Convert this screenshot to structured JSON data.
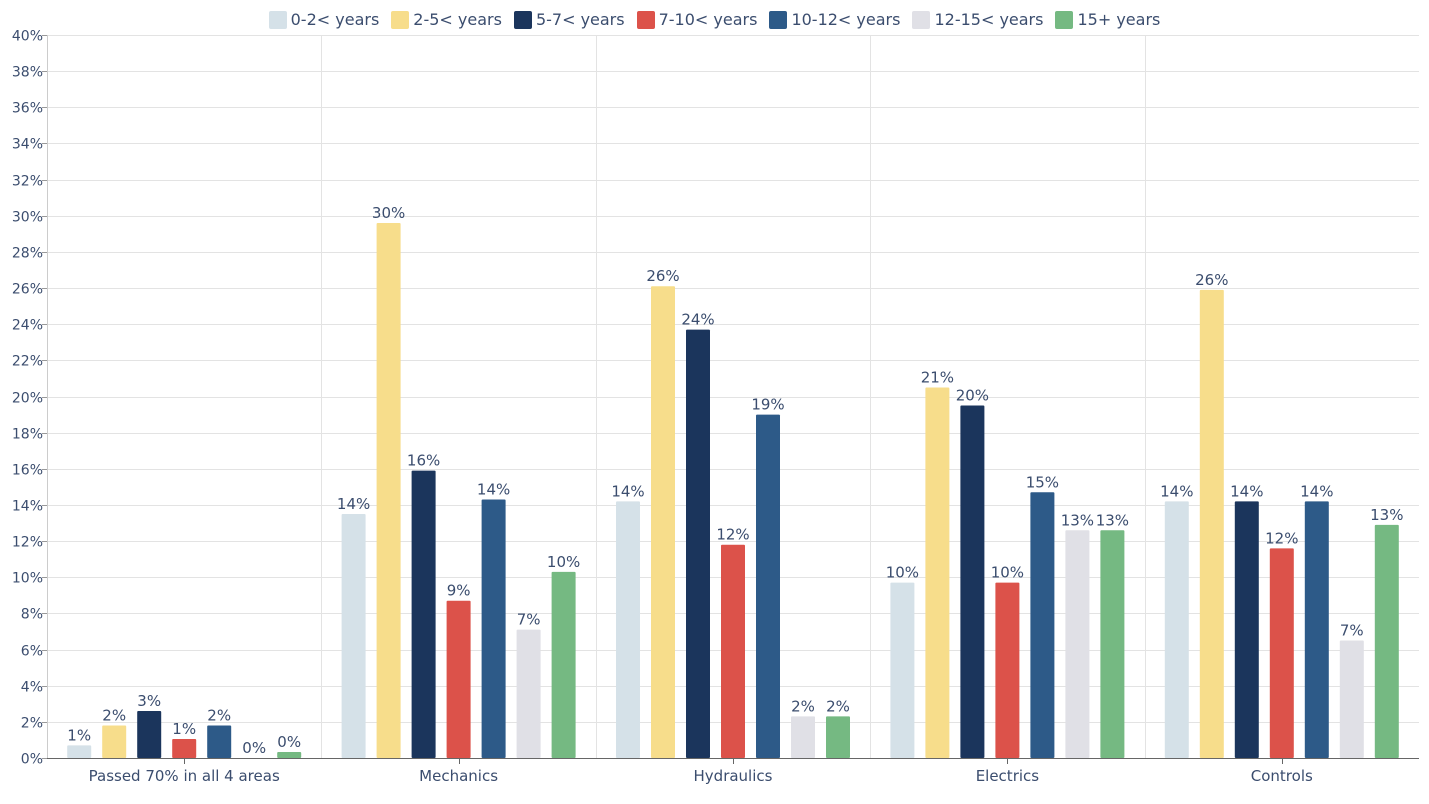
{
  "chart_data": {
    "type": "bar",
    "title": "",
    "xlabel": "",
    "ylabel": "",
    "ylim": [
      0,
      40
    ],
    "y_tick_step": 2,
    "y_tick_format": "percent",
    "grid": true,
    "legend_position": "top",
    "categories": [
      "Passed 70% in all 4 areas",
      "Mechanics",
      "Hydraulics",
      "Electrics",
      "Controls"
    ],
    "series": [
      {
        "name": "0-2< years",
        "color": "#d5e1e8",
        "values": [
          0.7,
          13.5,
          14.2,
          9.7,
          14.2
        ],
        "labels": [
          "1%",
          "14%",
          "14%",
          "10%",
          "14%"
        ]
      },
      {
        "name": "2-5< years",
        "color": "#f7dd8b",
        "values": [
          1.8,
          29.6,
          26.1,
          20.5,
          25.9
        ],
        "labels": [
          "2%",
          "30%",
          "26%",
          "21%",
          "26%"
        ]
      },
      {
        "name": "5-7< years",
        "color": "#1b355c",
        "values": [
          2.6,
          15.9,
          23.7,
          19.5,
          14.2
        ],
        "labels": [
          "3%",
          "16%",
          "24%",
          "20%",
          "14%"
        ]
      },
      {
        "name": "7-10< years",
        "color": "#dc524a",
        "values": [
          1.05,
          8.7,
          11.8,
          9.7,
          11.6
        ],
        "labels": [
          "1%",
          "9%",
          "12%",
          "10%",
          "12%"
        ]
      },
      {
        "name": "10-12< years",
        "color": "#2d5a88",
        "values": [
          1.8,
          14.3,
          19.0,
          14.7,
          14.2
        ],
        "labels": [
          "2%",
          "14%",
          "19%",
          "15%",
          "14%"
        ]
      },
      {
        "name": "12-15< years",
        "color": "#e0e0e6",
        "values": [
          0,
          7.1,
          2.3,
          12.6,
          6.5
        ],
        "labels": [
          "0%",
          "7%",
          "2%",
          "13%",
          "7%"
        ]
      },
      {
        "name": "15+ years",
        "color": "#75b982",
        "values": [
          0.33,
          10.3,
          2.3,
          12.6,
          12.9
        ],
        "labels": [
          "0%",
          "10%",
          "2%",
          "13%",
          "13%"
        ]
      }
    ]
  }
}
